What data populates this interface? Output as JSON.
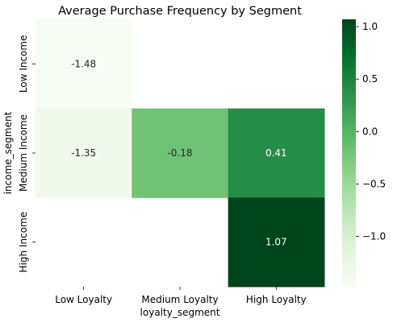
{
  "chart_data": {
    "type": "heatmap",
    "title": "Average Purchase Frequency by Segment",
    "xlabel": "loyalty_segment",
    "ylabel": "income_segment",
    "x_categories": [
      "Low Loyalty",
      "Medium Loyalty",
      "High Loyalty"
    ],
    "y_categories": [
      "Low Income",
      "Medium Income",
      "High Income"
    ],
    "values": [
      [
        -1.48,
        null,
        null
      ],
      [
        -1.35,
        -0.18,
        0.41
      ],
      [
        null,
        null,
        1.07
      ]
    ],
    "value_labels": [
      [
        "-1.48",
        "",
        ""
      ],
      [
        "-1.35",
        "-0.18",
        "0.41"
      ],
      [
        "",
        "",
        "1.07"
      ]
    ],
    "colorbar": {
      "range": [
        -1.48,
        1.07
      ],
      "ticks": [
        1.0,
        0.5,
        0.0,
        -0.5,
        -1.0
      ],
      "tick_labels": [
        "1.0",
        "0.5",
        "0.0",
        "−0.5",
        "−1.0"
      ],
      "colormap": "Greens",
      "color_low": "#f7fcf5",
      "color_high": "#00441b"
    },
    "grid": false,
    "legend": "colorbar-right"
  }
}
